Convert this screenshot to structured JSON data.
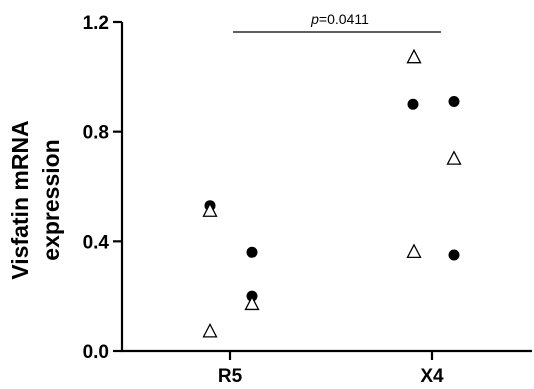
{
  "chart_data": {
    "type": "scatter",
    "title": "",
    "xlabel": "",
    "ylabel": [
      "Visfatin mRNA",
      "expression"
    ],
    "categories": [
      "R5",
      "X4"
    ],
    "ylim": [
      0,
      1.2
    ],
    "y_ticks": [
      "0.0",
      "0.4",
      "0.8",
      "1.2"
    ],
    "grid": false,
    "legend": "none",
    "series": [
      {
        "marker": "filled-circle",
        "color": "#000000",
        "points": [
          {
            "category": "R5",
            "y": 0.53
          },
          {
            "category": "R5",
            "y": 0.36
          },
          {
            "category": "R5",
            "y": 0.2
          },
          {
            "category": "X4",
            "y": 0.9
          },
          {
            "category": "X4",
            "y": 0.91
          },
          {
            "category": "X4",
            "y": 0.35
          }
        ]
      },
      {
        "marker": "open-triangle",
        "color": "#000000",
        "points": [
          {
            "category": "R5",
            "y": 0.51
          },
          {
            "category": "R5",
            "y": 0.17
          },
          {
            "category": "R5",
            "y": 0.07
          },
          {
            "category": "X4",
            "y": 1.07
          },
          {
            "category": "X4",
            "y": 0.7
          },
          {
            "category": "X4",
            "y": 0.36
          }
        ]
      }
    ],
    "annotations": [
      {
        "type": "significance-bracket",
        "between": [
          "R5",
          "X4"
        ],
        "p_label": "p",
        "p_value": "=0.0411"
      }
    ]
  }
}
